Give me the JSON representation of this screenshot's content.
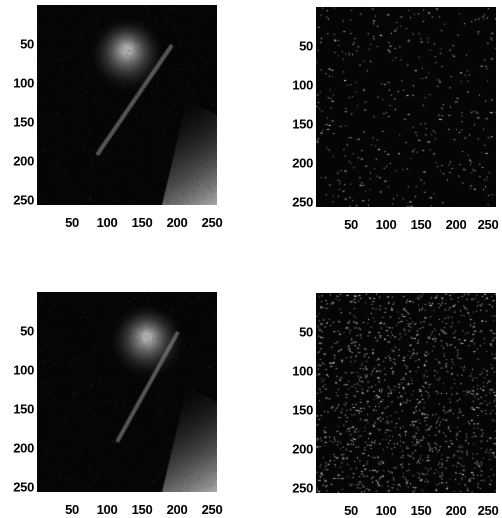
{
  "panels": [
    {
      "id": "p1",
      "kind": "grayscale-photo",
      "y_ticks": [
        "50",
        "100",
        "150",
        "200",
        "250"
      ],
      "x_ticks": [
        "50",
        "100",
        "150",
        "200",
        "250"
      ]
    },
    {
      "id": "p2",
      "kind": "sparse-noise",
      "y_ticks": [
        "50",
        "100",
        "150",
        "200",
        "250"
      ],
      "x_ticks": [
        "50",
        "100",
        "150",
        "200",
        "250"
      ]
    },
    {
      "id": "p3",
      "kind": "grayscale-photo",
      "y_ticks": [
        "50",
        "100",
        "150",
        "200",
        "250"
      ],
      "x_ticks": [
        "50",
        "100",
        "150",
        "200",
        "250"
      ]
    },
    {
      "id": "p4",
      "kind": "dense-noise",
      "y_ticks": [
        "50",
        "100",
        "150",
        "200",
        "250"
      ],
      "x_ticks": [
        "50",
        "100",
        "150",
        "200",
        "250"
      ]
    }
  ],
  "axis": {
    "min": 1,
    "max": 256
  },
  "colors": {
    "background": "#ffffff",
    "image_dark": "#050505",
    "text": "#000000"
  }
}
